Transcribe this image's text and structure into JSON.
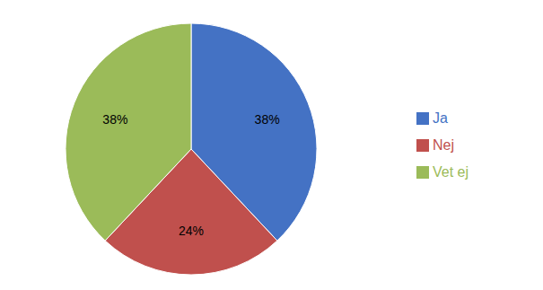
{
  "chart_data": {
    "type": "pie",
    "categories": [
      "Ja",
      "Nej",
      "Vet ej"
    ],
    "values": [
      38,
      24,
      38
    ],
    "value_labels": [
      "38%",
      "24%",
      "38%"
    ],
    "colors": [
      "#4472C4",
      "#C0504D",
      "#9BBB59"
    ],
    "data_labels": true,
    "legend": "right"
  }
}
